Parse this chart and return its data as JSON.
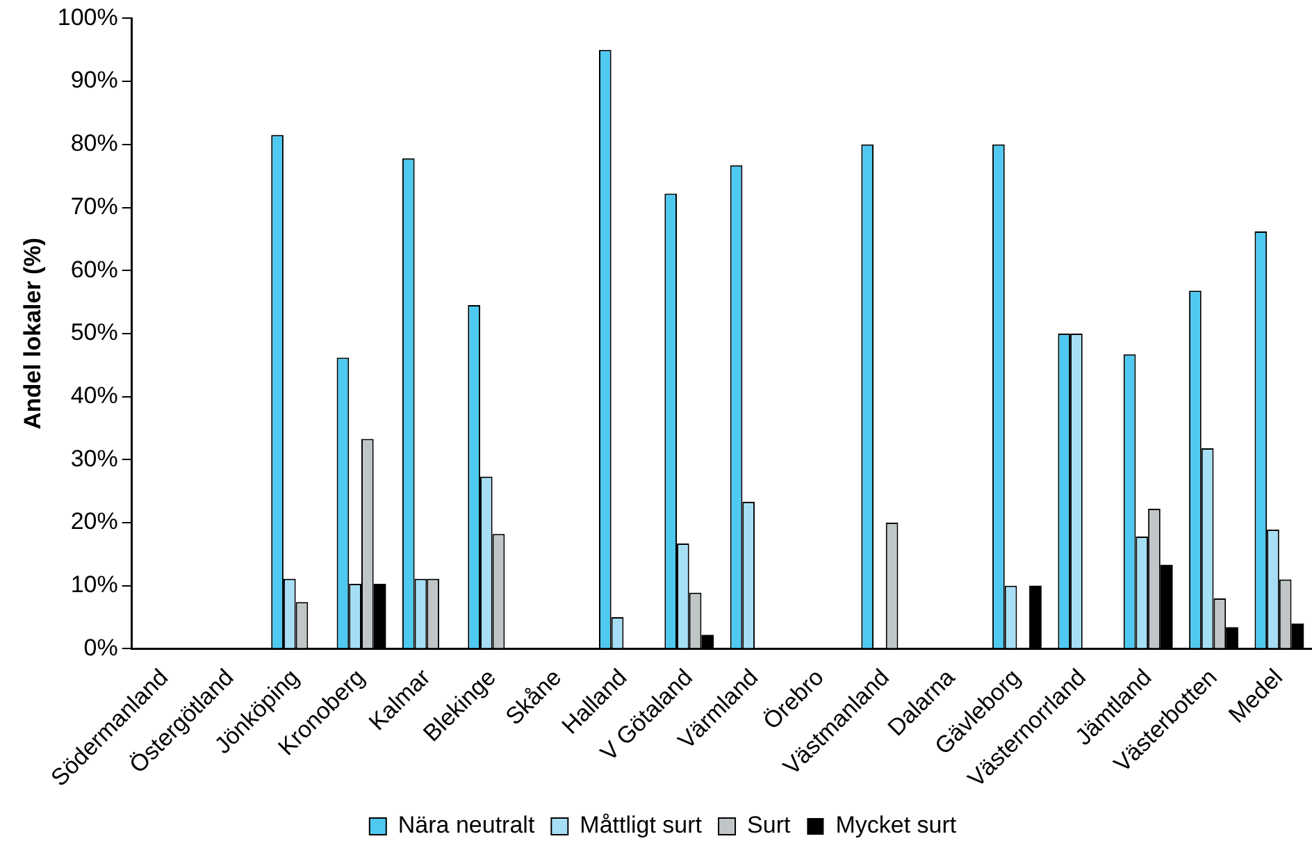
{
  "chart_data": {
    "type": "bar",
    "ylabel": "Andel lokaler (%)",
    "categories": [
      "Södermanland",
      "Östergötland",
      "Jönköping",
      "Kronoberg",
      "Kalmar",
      "Blekinge",
      "Skåne",
      "Halland",
      "V Götaland",
      "Värmland",
      "Örebro",
      "Västmanland",
      "Dalarna",
      "Gävleborg",
      "Västernorrland",
      "Jämtland",
      "Västerbotten",
      "Medel"
    ],
    "series": [
      {
        "name": "Nära neutralt",
        "color": "#4fc9f0",
        "values": [
          0,
          0,
          81.5,
          46.2,
          77.8,
          54.5,
          0,
          95,
          72.2,
          76.7,
          0,
          80,
          0,
          80,
          50,
          46.7,
          56.8,
          66.2
        ]
      },
      {
        "name": "Måttligt surt",
        "color": "#a6dff5",
        "values": [
          0,
          0,
          11.1,
          10.3,
          11.1,
          27.3,
          0,
          5,
          16.7,
          23.3,
          0,
          0,
          0,
          10,
          50,
          17.8,
          31.8,
          18.9
        ]
      },
      {
        "name": "Surt",
        "color": "#c0c6c8",
        "values": [
          0,
          0,
          7.4,
          33.3,
          11.1,
          18.2,
          0,
          0,
          8.9,
          0,
          0,
          20,
          0,
          0,
          0,
          22.2,
          8,
          11
        ]
      },
      {
        "name": "Mycket surt",
        "color": "#000000",
        "values": [
          0,
          0,
          0,
          10.3,
          0,
          0,
          0,
          0,
          2.2,
          0,
          0,
          0,
          0,
          10,
          0,
          13.3,
          3.4,
          4
        ]
      }
    ],
    "ylim": [
      0,
      100
    ],
    "yticks": [
      {
        "value": 0,
        "label": "0%"
      },
      {
        "value": 10,
        "label": "10%"
      },
      {
        "value": 20,
        "label": "20%"
      },
      {
        "value": 30,
        "label": "30%"
      },
      {
        "value": 40,
        "label": "40%"
      },
      {
        "value": 50,
        "label": "50%"
      },
      {
        "value": 60,
        "label": "60%"
      },
      {
        "value": 70,
        "label": "70%"
      },
      {
        "value": 80,
        "label": "80%"
      },
      {
        "value": 90,
        "label": "90%"
      },
      {
        "value": 100,
        "label": "100%"
      }
    ],
    "grid": false,
    "legend": "bottom"
  }
}
